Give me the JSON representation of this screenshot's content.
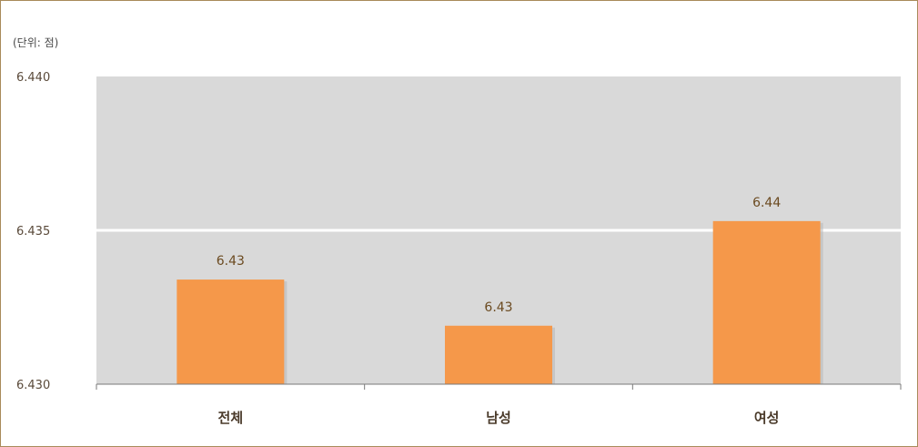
{
  "chart_data": {
    "type": "bar",
    "unit_label": "(단위: 점)",
    "categories": [
      "전체",
      "남성",
      "여성"
    ],
    "values": [
      6.4334,
      6.4319,
      6.4353
    ],
    "data_labels": [
      "6.43",
      "6.43",
      "6.44"
    ],
    "ylim": [
      6.43,
      6.44
    ],
    "yticks": [
      "6.430",
      "6.435",
      "6.440"
    ],
    "grid": true,
    "colors": {
      "bar": "#f5984a",
      "plot_background": "#d9d9d9",
      "gridline": "#ffffff",
      "border": "#a98a5a"
    }
  }
}
